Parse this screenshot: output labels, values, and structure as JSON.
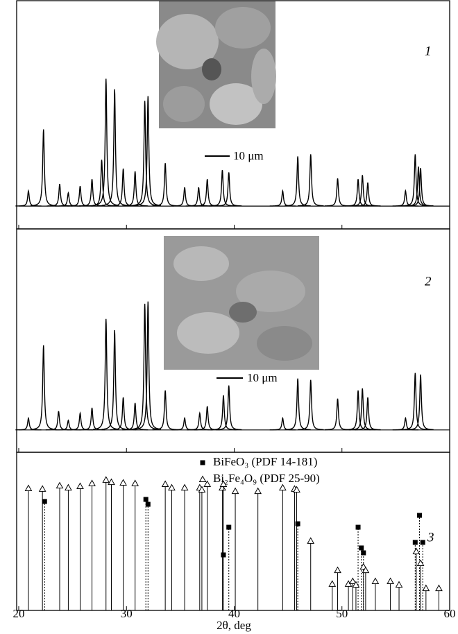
{
  "chart_data": [
    {
      "type": "line",
      "label": "1",
      "inset_caption": "10 μm",
      "ylim": [
        -10,
        90
      ],
      "x": [
        20.9,
        22.3,
        23.8,
        24.6,
        25.7,
        26.8,
        27.7,
        28.1,
        28.9,
        29.7,
        30.8,
        31.7,
        32.0,
        33.6,
        35.4,
        36.7,
        37.5,
        38.9,
        39.5,
        44.5,
        45.9,
        47.1,
        49.6,
        51.5,
        51.9,
        52.4,
        55.9,
        56.8,
        57.1,
        57.3
      ],
      "values": [
        6.7,
        33.6,
        9.7,
        5.8,
        8.8,
        11.8,
        20.3,
        55.8,
        51.2,
        16.4,
        15.2,
        46.1,
        48.2,
        18.8,
        8.2,
        8.2,
        11.8,
        15.8,
        14.8,
        6.7,
        21.8,
        22.7,
        12.1,
        11.8,
        13.6,
        10.3,
        6.7,
        22.7,
        17.3,
        16.7
      ]
    },
    {
      "type": "line",
      "label": "2",
      "inset_caption": "10 μm",
      "ylim": [
        -10,
        90
      ],
      "x": [
        20.9,
        22.3,
        23.7,
        24.6,
        25.7,
        26.8,
        28.1,
        28.9,
        29.7,
        30.8,
        31.7,
        32.0,
        33.6,
        35.4,
        36.8,
        37.5,
        39.0,
        39.5,
        44.5,
        45.9,
        47.1,
        49.6,
        51.5,
        51.9,
        52.4,
        55.9,
        56.8,
        57.3
      ],
      "values": [
        5.3,
        37.9,
        8.4,
        4.3,
        7.5,
        9.9,
        49.7,
        44.7,
        14.6,
        12.1,
        56.5,
        57.5,
        17.7,
        5.3,
        7.5,
        10.6,
        15.5,
        19.9,
        5.3,
        23.0,
        22.4,
        14.0,
        17.7,
        18.6,
        14.6,
        5.3,
        25.5,
        24.8
      ]
    },
    {
      "type": "stem",
      "label": "3",
      "ylim": [
        0,
        100
      ],
      "xlim": [
        20,
        60
      ],
      "xticks": [
        20,
        30,
        40,
        50,
        60
      ],
      "xlabel": "2θ, deg",
      "series": [
        {
          "name": "BiFeO₃ (PDF 14-181)",
          "marker": "square",
          "color": "#000",
          "x": [
            22.4,
            31.8,
            32.0,
            39.0,
            39.5,
            45.9,
            51.5,
            51.8,
            52.0,
            56.8,
            57.2,
            57.5
          ],
          "values": [
            68.9,
            70.2,
            67.1,
            35.1,
            52.6,
            54.8,
            52.6,
            39.5,
            36.4,
            43.0,
            60.1,
            43.0
          ]
        },
        {
          "name": "Bi₂Fe₄O₉ (PDF 25-90)",
          "marker": "triangle",
          "color": "#000",
          "x": [
            20.9,
            22.2,
            23.8,
            24.6,
            25.7,
            26.8,
            28.1,
            28.6,
            29.7,
            30.8,
            33.6,
            34.2,
            35.4,
            36.8,
            37.0,
            37.5,
            38.9,
            39.0,
            40.1,
            42.2,
            44.5,
            45.6,
            45.8,
            47.1,
            49.1,
            49.6,
            50.6,
            51.0,
            51.3,
            52.0,
            52.2,
            53.1,
            54.5,
            55.3,
            56.9,
            57.3,
            57.8,
            59.0
          ],
          "values": [
            77.2,
            76.8,
            78.9,
            77.6,
            78.5,
            80.3,
            82.5,
            81.1,
            80.7,
            80.3,
            79.8,
            77.6,
            77.6,
            77.6,
            76.3,
            79.8,
            77.6,
            79.8,
            75.4,
            75.4,
            77.6,
            76.8,
            76.3,
            43.9,
            16.7,
            25.4,
            16.7,
            18.4,
            16.2,
            27.6,
            25.4,
            18.4,
            18.4,
            16.2,
            37.3,
            29.8,
            14.0,
            14.0
          ]
        }
      ]
    }
  ]
}
